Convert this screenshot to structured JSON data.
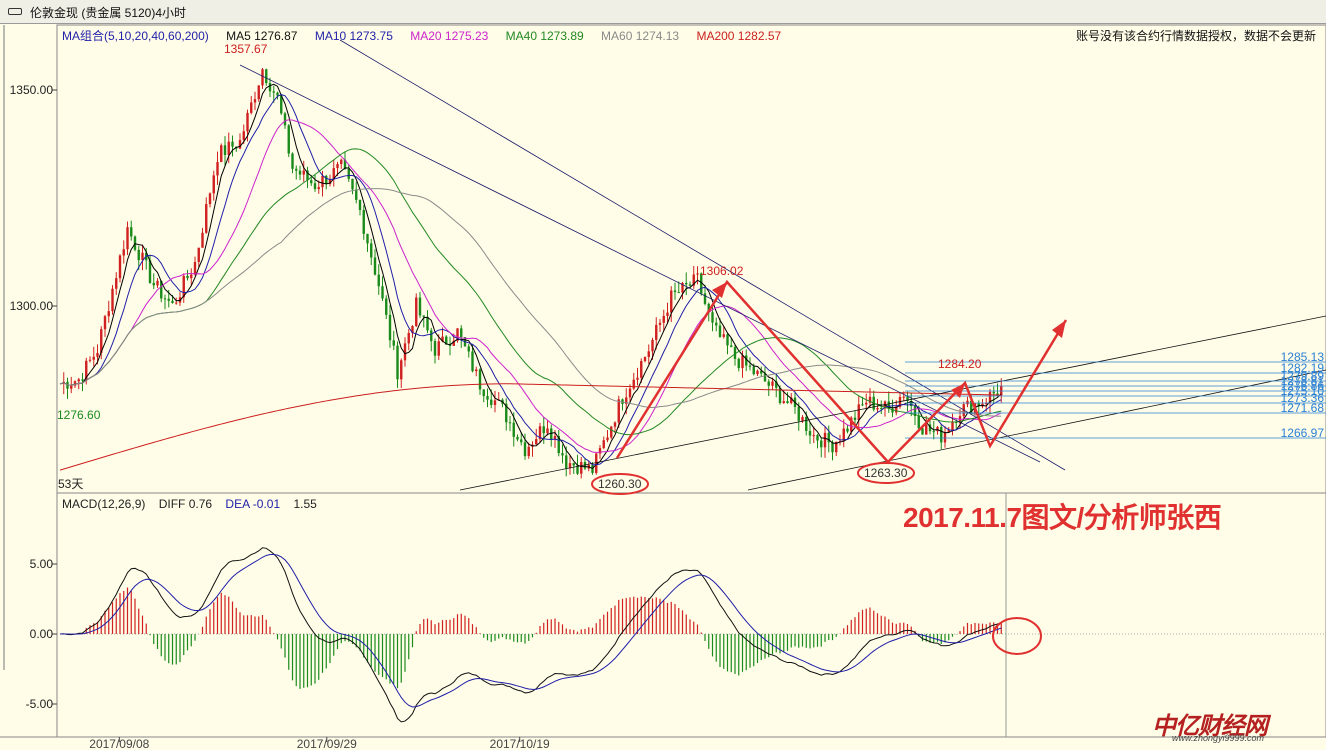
{
  "window": {
    "title": "伦敦金现 (贵金属 5120)4小时"
  },
  "ma_legend": {
    "group": "MA组合(5,10,20,40,60,200)",
    "ma5": "MA5 1276.87",
    "ma10": "MA10 1273.75",
    "ma20": "MA20 1275.23",
    "ma40": "MA40 1273.89",
    "ma60": "MA60 1274.13",
    "ma200": "MA200 1282.57"
  },
  "notice": "账号没有该合约行情数据授权，数据不会更新",
  "macd_legend": {
    "name": "MACD(12,26,9)",
    "diff": "DIFF   0.76",
    "dea": "DEA   -0.01",
    "macd": "1.55"
  },
  "stamp": "2017.11.7图文/分析师张西",
  "watermark": {
    "brand": "中亿财经网",
    "url": "www.zhongyi9999.com"
  },
  "colors": {
    "background": "#fffde8",
    "bull": "#d02020",
    "bear": "#1a8a1a",
    "annotation": "#e03030",
    "ma5": "#000000",
    "ma10": "#1f1fa8",
    "ma20": "#cc22cc",
    "ma40": "#228822",
    "ma60": "#8a8a8a",
    "ma200": "#cc1f1f",
    "fib": "#2a7fd4"
  },
  "chart_data": [
    {
      "type": "candlestick",
      "ylim": [
        1255,
        1372
      ],
      "y_ticks": [
        1300,
        1350
      ],
      "y_tick_labels": [
        "1300.00",
        "1350.00"
      ],
      "x_tick_labels": [
        "2017/09/08",
        "2017/09/29",
        "2017/10/19"
      ],
      "bars_count": 271,
      "annotations": [
        {
          "text": "1357.67",
          "bar": 55,
          "price": 1357.67,
          "color": "#cc1f1f"
        },
        {
          "text": "1276.60",
          "bar": 2,
          "price": 1276.6,
          "color": "#1a8a1a"
        },
        {
          "text": "1306.02",
          "bar": 117,
          "price": 1306.02,
          "color": "#cc1f1f"
        },
        {
          "text": "1260.30",
          "bar": 92,
          "price": 1260.3,
          "color": "#333333",
          "circled": true
        },
        {
          "text": "1263.30",
          "bar": 139,
          "price": 1263.3,
          "color": "#333333",
          "circled": true
        },
        {
          "text": "1284.20",
          "bar": 156,
          "price": 1284.2,
          "color": "#cc1f1f"
        },
        {
          "text": "53天",
          "bar": 0,
          "price": 1261,
          "color": "#222222"
        }
      ],
      "fib_levels": [
        "1285.13",
        "1282.19",
        "1279.89",
        "1278.81",
        "1276.86",
        "1275.10",
        "1273.36",
        "1271.68",
        "1266.97"
      ],
      "swing_points": [
        {
          "bar": 92,
          "price": 1260.3
        },
        {
          "bar": 117,
          "price": 1306.02
        },
        {
          "bar": 139,
          "price": 1263.3
        },
        {
          "bar": 156,
          "price": 1284.2
        },
        {
          "bar": 162,
          "price": 1270
        },
        {
          "bar": 173,
          "price": 1293
        }
      ],
      "ma_series": [
        "MA5",
        "MA10",
        "MA20",
        "MA40",
        "MA60",
        "MA200"
      ]
    },
    {
      "type": "bar",
      "name": "MACD(12,26,9)",
      "ylim": [
        -7.5,
        9
      ],
      "y_ticks": [
        -5,
        0,
        5
      ],
      "y_tick_labels": [
        "-5.00",
        "0.00",
        "5.00"
      ],
      "series": [
        "DIFF",
        "DEA",
        "MACD"
      ]
    }
  ]
}
